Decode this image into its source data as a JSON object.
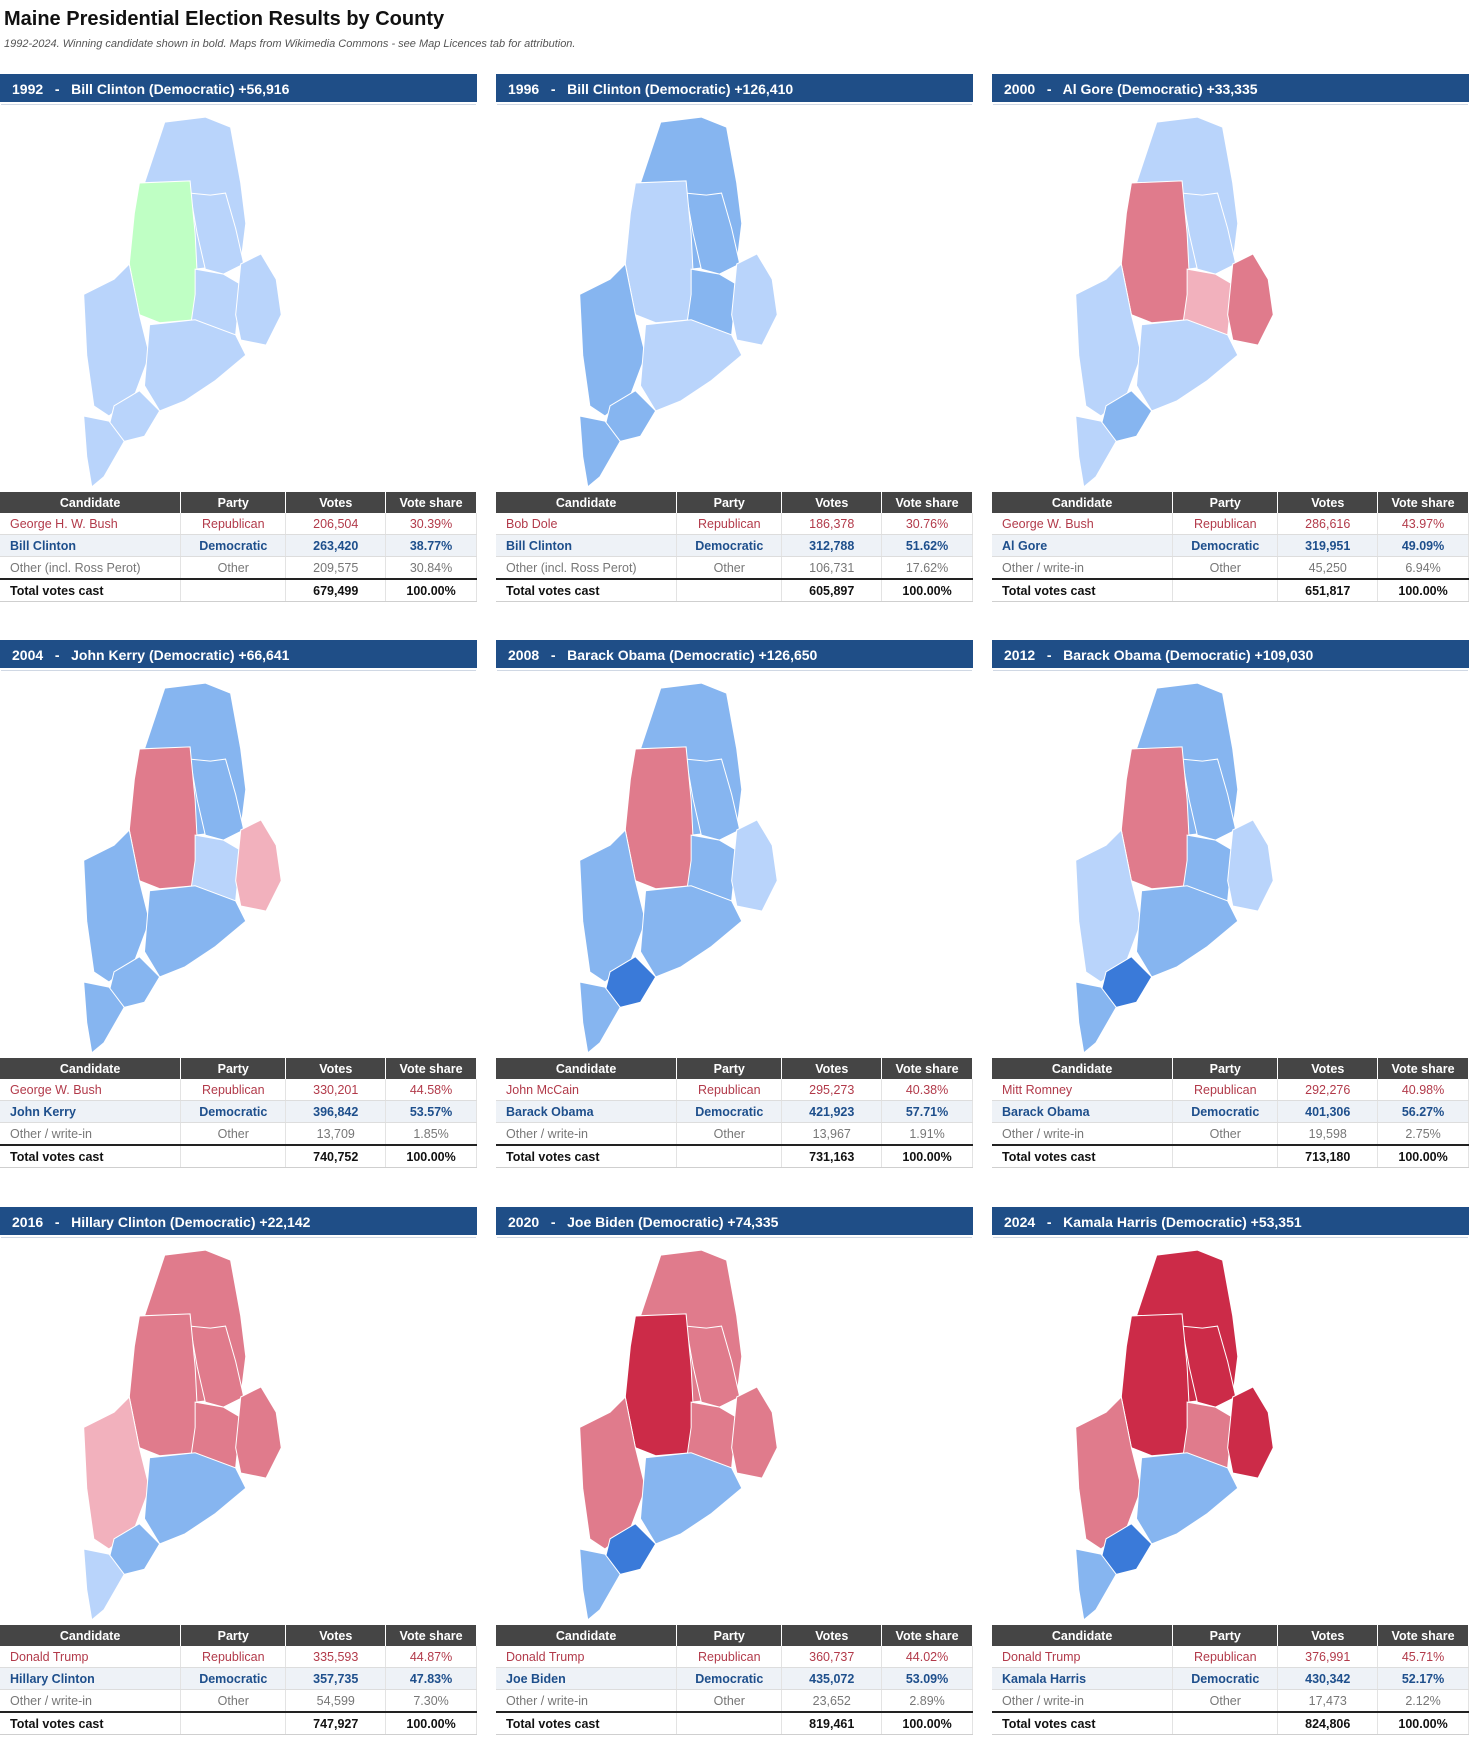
{
  "title": "Maine Presidential Election Results by County",
  "subtitle": "1992-2024. Winning candidate shown in bold. Maps from Wikimedia Commons - see Map Licences tab for attribution.",
  "columns": [
    "Candidate",
    "Party",
    "Votes",
    "Vote share"
  ],
  "colors": {
    "header_bg": "#1f4e87",
    "table_header_bg": "#454545",
    "dem_light": "#b9d4fb",
    "dem_mid": "#86b5f0",
    "dem_dark": "#3a7ad9",
    "rep_light": "#f2b1bd",
    "rep_mid": "#e07b8c",
    "rep_dark": "#cc2b48",
    "other": "#bfffc4"
  },
  "elections": [
    {
      "header": "1992   -   Bill Clinton (Democratic) +56,916",
      "rows": [
        {
          "candidate": "George H. W. Bush",
          "party": "Republican",
          "votes": "206,504",
          "share": "30.39%",
          "type": "rep"
        },
        {
          "candidate": "Bill Clinton",
          "party": "Democratic",
          "votes": "263,420",
          "share": "38.77%",
          "type": "dem"
        },
        {
          "candidate": "Other (incl. Ross Perot)",
          "party": "Other",
          "votes": "209,575",
          "share": "30.84%",
          "type": "oth"
        },
        {
          "candidate": "Total votes cast",
          "party": "",
          "votes": "679,499",
          "share": "100.00%",
          "type": "tot"
        }
      ],
      "map": {
        "north": "dem_light",
        "east": "dem_light",
        "central": "other",
        "mid_east": "dem_light",
        "downeast": "dem_light",
        "west": "dem_light",
        "coast": "dem_light",
        "portland": "dem_light",
        "south": "dem_light"
      }
    },
    {
      "header": "1996   -   Bill Clinton (Democratic) +126,410",
      "rows": [
        {
          "candidate": "Bob Dole",
          "party": "Republican",
          "votes": "186,378",
          "share": "30.76%",
          "type": "rep"
        },
        {
          "candidate": "Bill Clinton",
          "party": "Democratic",
          "votes": "312,788",
          "share": "51.62%",
          "type": "dem"
        },
        {
          "candidate": "Other (incl. Ross Perot)",
          "party": "Other",
          "votes": "106,731",
          "share": "17.62%",
          "type": "oth"
        },
        {
          "candidate": "Total votes cast",
          "party": "",
          "votes": "605,897",
          "share": "100.00%",
          "type": "tot"
        }
      ],
      "map": {
        "north": "dem_mid",
        "east": "dem_mid",
        "central": "dem_light",
        "mid_east": "dem_mid",
        "downeast": "dem_light",
        "west": "dem_mid",
        "coast": "dem_light",
        "portland": "dem_mid",
        "south": "dem_mid"
      }
    },
    {
      "header": "2000   -   Al Gore (Democratic) +33,335",
      "rows": [
        {
          "candidate": "George W. Bush",
          "party": "Republican",
          "votes": "286,616",
          "share": "43.97%",
          "type": "rep"
        },
        {
          "candidate": "Al Gore",
          "party": "Democratic",
          "votes": "319,951",
          "share": "49.09%",
          "type": "dem"
        },
        {
          "candidate": "Other / write-in",
          "party": "Other",
          "votes": "45,250",
          "share": "6.94%",
          "type": "oth"
        },
        {
          "candidate": "Total votes cast",
          "party": "",
          "votes": "651,817",
          "share": "100.00%",
          "type": "tot"
        }
      ],
      "map": {
        "north": "dem_light",
        "east": "dem_light",
        "central": "rep_mid",
        "mid_east": "rep_light",
        "downeast": "rep_mid",
        "west": "dem_light",
        "coast": "dem_light",
        "portland": "dem_mid",
        "south": "dem_light"
      }
    },
    {
      "header": "2004   -   John Kerry (Democratic) +66,641",
      "rows": [
        {
          "candidate": "George W. Bush",
          "party": "Republican",
          "votes": "330,201",
          "share": "44.58%",
          "type": "rep"
        },
        {
          "candidate": "John Kerry",
          "party": "Democratic",
          "votes": "396,842",
          "share": "53.57%",
          "type": "dem"
        },
        {
          "candidate": "Other / write-in",
          "party": "Other",
          "votes": "13,709",
          "share": "1.85%",
          "type": "oth"
        },
        {
          "candidate": "Total votes cast",
          "party": "",
          "votes": "740,752",
          "share": "100.00%",
          "type": "tot"
        }
      ],
      "map": {
        "north": "dem_mid",
        "east": "dem_mid",
        "central": "rep_mid",
        "mid_east": "dem_light",
        "downeast": "rep_light",
        "west": "dem_mid",
        "coast": "dem_mid",
        "portland": "dem_mid",
        "south": "dem_mid"
      }
    },
    {
      "header": "2008   -   Barack Obama (Democratic) +126,650",
      "rows": [
        {
          "candidate": "John McCain",
          "party": "Republican",
          "votes": "295,273",
          "share": "40.38%",
          "type": "rep"
        },
        {
          "candidate": "Barack Obama",
          "party": "Democratic",
          "votes": "421,923",
          "share": "57.71%",
          "type": "dem"
        },
        {
          "candidate": "Other / write-in",
          "party": "Other",
          "votes": "13,967",
          "share": "1.91%",
          "type": "oth"
        },
        {
          "candidate": "Total votes cast",
          "party": "",
          "votes": "731,163",
          "share": "100.00%",
          "type": "tot"
        }
      ],
      "map": {
        "north": "dem_mid",
        "east": "dem_mid",
        "central": "rep_mid",
        "mid_east": "dem_mid",
        "downeast": "dem_light",
        "west": "dem_mid",
        "coast": "dem_mid",
        "portland": "dem_dark",
        "south": "dem_mid"
      }
    },
    {
      "header": "2012   -   Barack Obama (Democratic) +109,030",
      "rows": [
        {
          "candidate": "Mitt Romney",
          "party": "Republican",
          "votes": "292,276",
          "share": "40.98%",
          "type": "rep"
        },
        {
          "candidate": "Barack Obama",
          "party": "Democratic",
          "votes": "401,306",
          "share": "56.27%",
          "type": "dem"
        },
        {
          "candidate": "Other / write-in",
          "party": "Other",
          "votes": "19,598",
          "share": "2.75%",
          "type": "oth"
        },
        {
          "candidate": "Total votes cast",
          "party": "",
          "votes": "713,180",
          "share": "100.00%",
          "type": "tot"
        }
      ],
      "map": {
        "north": "dem_mid",
        "east": "dem_mid",
        "central": "rep_mid",
        "mid_east": "dem_mid",
        "downeast": "dem_light",
        "west": "dem_light",
        "coast": "dem_mid",
        "portland": "dem_dark",
        "south": "dem_mid"
      }
    },
    {
      "header": "2016   -   Hillary Clinton (Democratic) +22,142",
      "rows": [
        {
          "candidate": "Donald Trump",
          "party": "Republican",
          "votes": "335,593",
          "share": "44.87%",
          "type": "rep"
        },
        {
          "candidate": "Hillary Clinton",
          "party": "Democratic",
          "votes": "357,735",
          "share": "47.83%",
          "type": "dem"
        },
        {
          "candidate": "Other / write-in",
          "party": "Other",
          "votes": "54,599",
          "share": "7.30%",
          "type": "oth"
        },
        {
          "candidate": "Total votes cast",
          "party": "",
          "votes": "747,927",
          "share": "100.00%",
          "type": "tot"
        }
      ],
      "map": {
        "north": "rep_mid",
        "east": "rep_mid",
        "central": "rep_mid",
        "mid_east": "rep_mid",
        "downeast": "rep_mid",
        "west": "rep_light",
        "coast": "dem_mid",
        "portland": "dem_mid",
        "south": "dem_light"
      }
    },
    {
      "header": "2020   -   Joe Biden (Democratic) +74,335",
      "rows": [
        {
          "candidate": "Donald Trump",
          "party": "Republican",
          "votes": "360,737",
          "share": "44.02%",
          "type": "rep"
        },
        {
          "candidate": "Joe Biden",
          "party": "Democratic",
          "votes": "435,072",
          "share": "53.09%",
          "type": "dem"
        },
        {
          "candidate": "Other / write-in",
          "party": "Other",
          "votes": "23,652",
          "share": "2.89%",
          "type": "oth"
        },
        {
          "candidate": "Total votes cast",
          "party": "",
          "votes": "819,461",
          "share": "100.00%",
          "type": "tot"
        }
      ],
      "map": {
        "north": "rep_mid",
        "east": "rep_mid",
        "central": "rep_dark",
        "mid_east": "rep_mid",
        "downeast": "rep_mid",
        "west": "rep_mid",
        "coast": "dem_mid",
        "portland": "dem_dark",
        "south": "dem_mid"
      }
    },
    {
      "header": "2024   -   Kamala Harris (Democratic) +53,351",
      "rows": [
        {
          "candidate": "Donald Trump",
          "party": "Republican",
          "votes": "376,991",
          "share": "45.71%",
          "type": "rep"
        },
        {
          "candidate": "Kamala Harris",
          "party": "Democratic",
          "votes": "430,342",
          "share": "52.17%",
          "type": "dem"
        },
        {
          "candidate": "Other / write-in",
          "party": "Other",
          "votes": "17,473",
          "share": "2.12%",
          "type": "oth"
        },
        {
          "candidate": "Total votes cast",
          "party": "",
          "votes": "824,806",
          "share": "100.00%",
          "type": "tot"
        }
      ],
      "map": {
        "north": "rep_dark",
        "east": "rep_dark",
        "central": "rep_dark",
        "mid_east": "rep_mid",
        "downeast": "rep_dark",
        "west": "rep_mid",
        "coast": "dem_mid",
        "portland": "dem_dark",
        "south": "dem_mid"
      }
    }
  ]
}
